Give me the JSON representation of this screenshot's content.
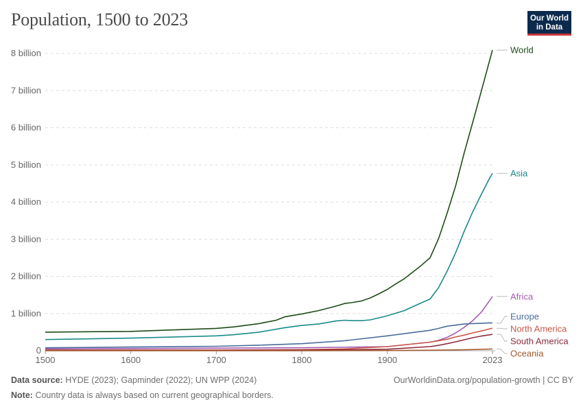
{
  "title": "Population, 1500 to 2023",
  "logo": {
    "line1": "Our World",
    "line2": "in Data"
  },
  "footer": {
    "source_label": "Data source:",
    "source_text": "HYDE (2023); Gapminder (2022); UN WPP (2024)",
    "note_label": "Note:",
    "note_text": "Country data is always based on current geographical borders.",
    "credit": "OurWorldinData.org/population-growth | CC BY"
  },
  "chart_data": {
    "type": "line",
    "title": "Population, 1500 to 2023",
    "xlim": [
      1500,
      2023
    ],
    "ylim": [
      0,
      8000000000
    ],
    "x_ticks": [
      1500,
      1600,
      1700,
      1800,
      1900,
      2023
    ],
    "x_tick_labels": [
      "1500",
      "1600",
      "1700",
      "1800",
      "1900",
      "2023"
    ],
    "y_ticks": [
      0,
      1000000000,
      2000000000,
      3000000000,
      4000000000,
      5000000000,
      6000000000,
      7000000000,
      8000000000
    ],
    "y_tick_labels": [
      "0",
      "1 billion",
      "2 billion",
      "3 billion",
      "4 billion",
      "5 billion",
      "6 billion",
      "7 billion",
      "8 billion"
    ],
    "grid": true,
    "legend": "right-end labels",
    "series": [
      {
        "name": "World",
        "color": "#1d4a17",
        "x": [
          1500,
          1550,
          1600,
          1650,
          1700,
          1720,
          1750,
          1770,
          1780,
          1800,
          1820,
          1840,
          1850,
          1860,
          1870,
          1880,
          1890,
          1900,
          1910,
          1920,
          1930,
          1940,
          1950,
          1960,
          1970,
          1980,
          1990,
          2000,
          2010,
          2020,
          2023
        ],
        "y": [
          500000000,
          510000000,
          520000000,
          560000000,
          600000000,
          640000000,
          730000000,
          820000000,
          910000000,
          990000000,
          1080000000,
          1200000000,
          1270000000,
          1300000000,
          1340000000,
          1420000000,
          1530000000,
          1650000000,
          1800000000,
          1940000000,
          2120000000,
          2300000000,
          2500000000,
          3020000000,
          3700000000,
          4440000000,
          5330000000,
          6150000000,
          6990000000,
          7840000000,
          8090000000
        ]
      },
      {
        "name": "Asia",
        "color": "#198a8a",
        "x": [
          1500,
          1600,
          1700,
          1720,
          1750,
          1780,
          1800,
          1820,
          1840,
          1850,
          1860,
          1870,
          1880,
          1900,
          1920,
          1940,
          1950,
          1960,
          1970,
          1980,
          1990,
          2000,
          2010,
          2020,
          2023
        ],
        "y": [
          300000000,
          340000000,
          400000000,
          430000000,
          500000000,
          620000000,
          680000000,
          720000000,
          800000000,
          820000000,
          810000000,
          810000000,
          830000000,
          940000000,
          1080000000,
          1290000000,
          1390000000,
          1700000000,
          2140000000,
          2640000000,
          3220000000,
          3740000000,
          4210000000,
          4660000000,
          4770000000
        ]
      },
      {
        "name": "Africa",
        "color": "#a45cb3",
        "x": [
          1500,
          1600,
          1700,
          1800,
          1900,
          1950,
          1960,
          1970,
          1980,
          1990,
          2000,
          2010,
          2020,
          2023
        ],
        "y": [
          50000000,
          60000000,
          70000000,
          80000000,
          110000000,
          230000000,
          280000000,
          360000000,
          480000000,
          630000000,
          810000000,
          1040000000,
          1360000000,
          1460000000
        ]
      },
      {
        "name": "Europe",
        "color": "#4a6c9b",
        "x": [
          1500,
          1600,
          1700,
          1750,
          1800,
          1850,
          1900,
          1950,
          1960,
          1970,
          1980,
          1990,
          2000,
          2010,
          2020,
          2023
        ],
        "y": [
          80000000,
          100000000,
          120000000,
          150000000,
          190000000,
          270000000,
          400000000,
          550000000,
          600000000,
          660000000,
          690000000,
          720000000,
          730000000,
          740000000,
          750000000,
          745000000
        ]
      },
      {
        "name": "North America",
        "color": "#c95747",
        "x": [
          1500,
          1600,
          1700,
          1800,
          1850,
          1900,
          1950,
          1960,
          1970,
          1980,
          1990,
          2000,
          2010,
          2020,
          2023
        ],
        "y": [
          20000000,
          20000000,
          20000000,
          30000000,
          50000000,
          110000000,
          230000000,
          270000000,
          310000000,
          370000000,
          420000000,
          480000000,
          530000000,
          590000000,
          605000000
        ]
      },
      {
        "name": "South America",
        "color": "#8c2b3b",
        "x": [
          1500,
          1600,
          1700,
          1800,
          1850,
          1900,
          1950,
          1960,
          1970,
          1980,
          1990,
          2000,
          2010,
          2020,
          2023
        ],
        "y": [
          10000000,
          10000000,
          10000000,
          15000000,
          25000000,
          40000000,
          110000000,
          145000000,
          190000000,
          240000000,
          295000000,
          350000000,
          395000000,
          430000000,
          440000000
        ]
      },
      {
        "name": "Oceania",
        "color": "#a35a2e",
        "x": [
          1500,
          1700,
          1800,
          1900,
          1950,
          1980,
          2000,
          2023
        ],
        "y": [
          2000000,
          2000000,
          2000000,
          6000000,
          13000000,
          23000000,
          31000000,
          46000000
        ]
      }
    ]
  }
}
